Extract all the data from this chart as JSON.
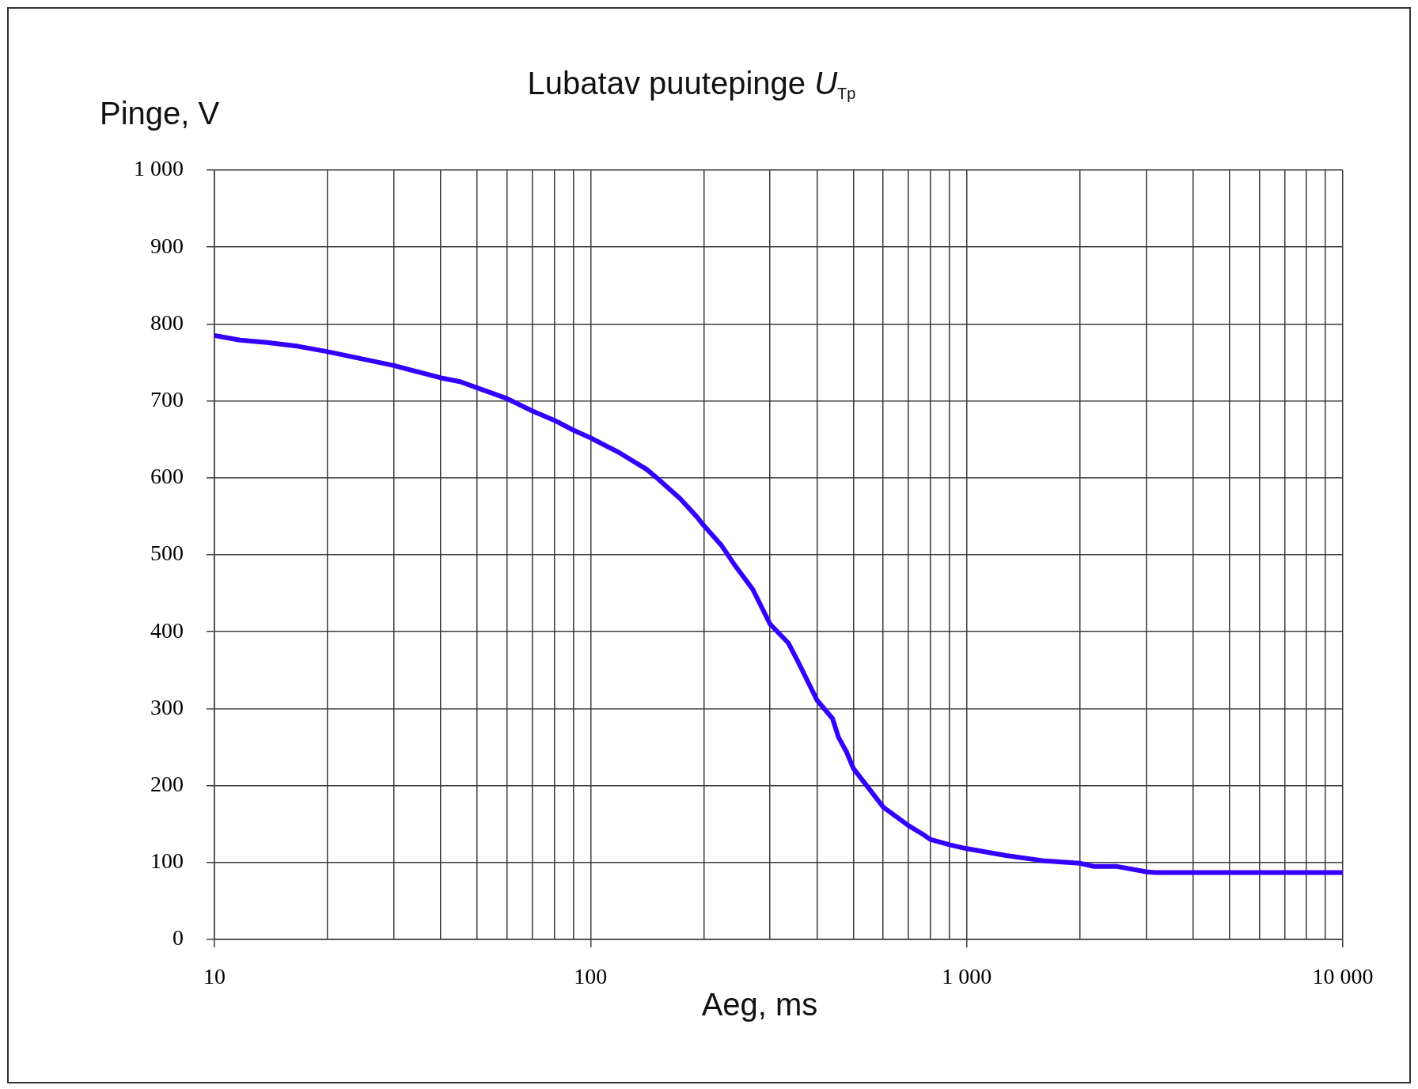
{
  "chart_data": {
    "type": "line",
    "title": "Lubatav puutepinge U$_{Tp}$",
    "xlabel": "Aeg, ms",
    "ylabel": "Pinge, V",
    "x": [
      10,
      11.7,
      13.8,
      16.7,
      20,
      30,
      40,
      45,
      50,
      60,
      70,
      80,
      90,
      100,
      119,
      141,
      150,
      173,
      192,
      200,
      223,
      243,
      270,
      300,
      336,
      357,
      400,
      440,
      456,
      480,
      500,
      542,
      600,
      700,
      768,
      800,
      900,
      1000,
      1273,
      1615,
      2000,
      2172,
      2495,
      3000,
      3163,
      10000
    ],
    "series": [
      {
        "color": "#3300ff",
        "values": [
          785,
          779,
          776,
          771,
          764,
          746,
          730,
          725,
          717,
          703,
          687,
          675,
          662,
          652,
          633,
          611,
          600,
          573,
          549,
          538,
          512,
          485,
          455,
          410,
          385,
          360,
          311,
          287,
          263,
          243,
          222,
          200,
          172,
          148,
          136,
          130,
          123,
          118,
          109,
          102,
          99,
          95,
          95,
          88,
          87,
          87
        ]
      }
    ],
    "log": "x",
    "xlim": [
      10,
      10000
    ],
    "ylim": [
      0,
      1000
    ],
    "xticks": [
      10,
      {
        "value": 20,
        "label": null
      },
      {
        "value": 30,
        "label": null
      },
      {
        "value": 40,
        "label": null
      },
      {
        "value": 50,
        "label": null
      },
      {
        "value": 60,
        "label": null
      },
      {
        "value": 70,
        "label": null
      },
      {
        "value": 80,
        "label": null
      },
      {
        "value": 90,
        "label": null
      },
      100,
      {
        "value": 200,
        "label": null
      },
      {
        "value": 300,
        "label": null
      },
      {
        "value": 400,
        "label": null
      },
      {
        "value": 500,
        "label": null
      },
      {
        "value": 600,
        "label": null
      },
      {
        "value": 700,
        "label": null
      },
      {
        "value": 800,
        "label": null
      },
      {
        "value": 900,
        "label": null
      },
      {
        "value": 1000,
        "label": "1 000"
      },
      {
        "value": 2000,
        "label": null
      },
      {
        "value": 3000,
        "label": null
      },
      {
        "value": 4000,
        "label": null
      },
      {
        "value": 5000,
        "label": null
      },
      {
        "value": 6000,
        "label": null
      },
      {
        "value": 7000,
        "label": null
      },
      {
        "value": 8000,
        "label": null
      },
      {
        "value": 9000,
        "label": null
      },
      {
        "value": 10000,
        "label": "10 000"
      }
    ],
    "yticks": [
      0,
      100,
      200,
      300,
      400,
      500,
      600,
      700,
      800,
      900,
      {
        "value": 1000,
        "label": "1 000"
      }
    ],
    "grid": true,
    "marker": "none",
    "line_style": "solid"
  }
}
